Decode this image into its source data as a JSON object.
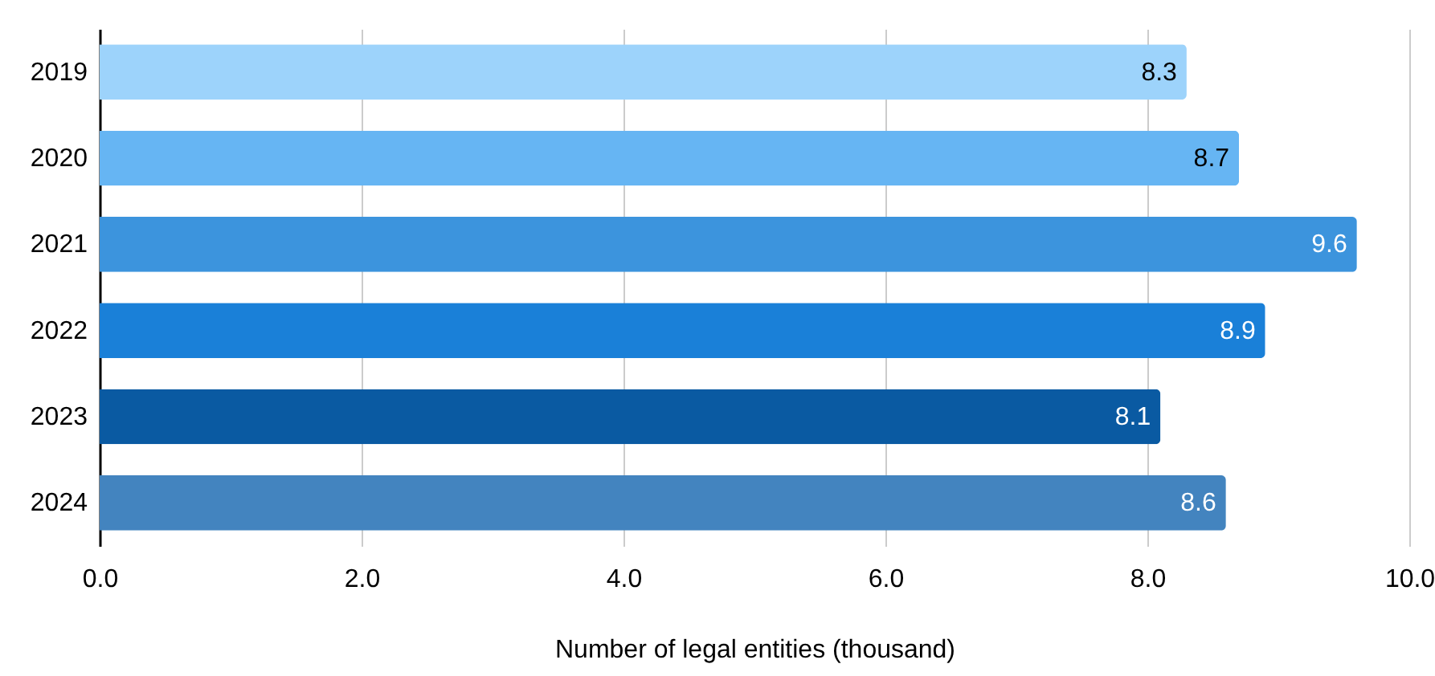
{
  "chart_data": {
    "type": "bar",
    "orientation": "horizontal",
    "xlabel": "Number of legal entities (thousand)",
    "categories": [
      "2019",
      "2020",
      "2021",
      "2022",
      "2023",
      "2024"
    ],
    "values": [
      8.3,
      8.7,
      9.6,
      8.9,
      8.1,
      8.6
    ],
    "colors": [
      "#9dd3fb",
      "#66b5f3",
      "#3c94dd",
      "#1a80d8",
      "#0a5aa2",
      "#4384bf"
    ],
    "xlim": [
      0,
      10
    ],
    "xticks": [
      {
        "value": 0,
        "label": "0.0"
      },
      {
        "value": 2,
        "label": "2.0"
      },
      {
        "value": 4,
        "label": "4.0"
      },
      {
        "value": 6,
        "label": "6.0"
      },
      {
        "value": 8,
        "label": "8.0"
      },
      {
        "value": 10,
        "label": "10.0"
      }
    ],
    "grid": "x",
    "data_labels": true
  }
}
